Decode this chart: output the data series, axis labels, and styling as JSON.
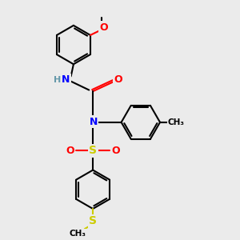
{
  "bg_color": "#ebebeb",
  "bond_color": "#000000",
  "N_color": "#0000ff",
  "O_color": "#ff0000",
  "S_thio_color": "#cccc00",
  "S_sulfonyl_color": "#cccc00",
  "H_color": "#6699aa",
  "lw": 1.5,
  "figsize": [
    3.0,
    3.0
  ],
  "dpi": 100,
  "xlim": [
    -2.5,
    5.5
  ],
  "ylim": [
    -4.5,
    4.5
  ]
}
